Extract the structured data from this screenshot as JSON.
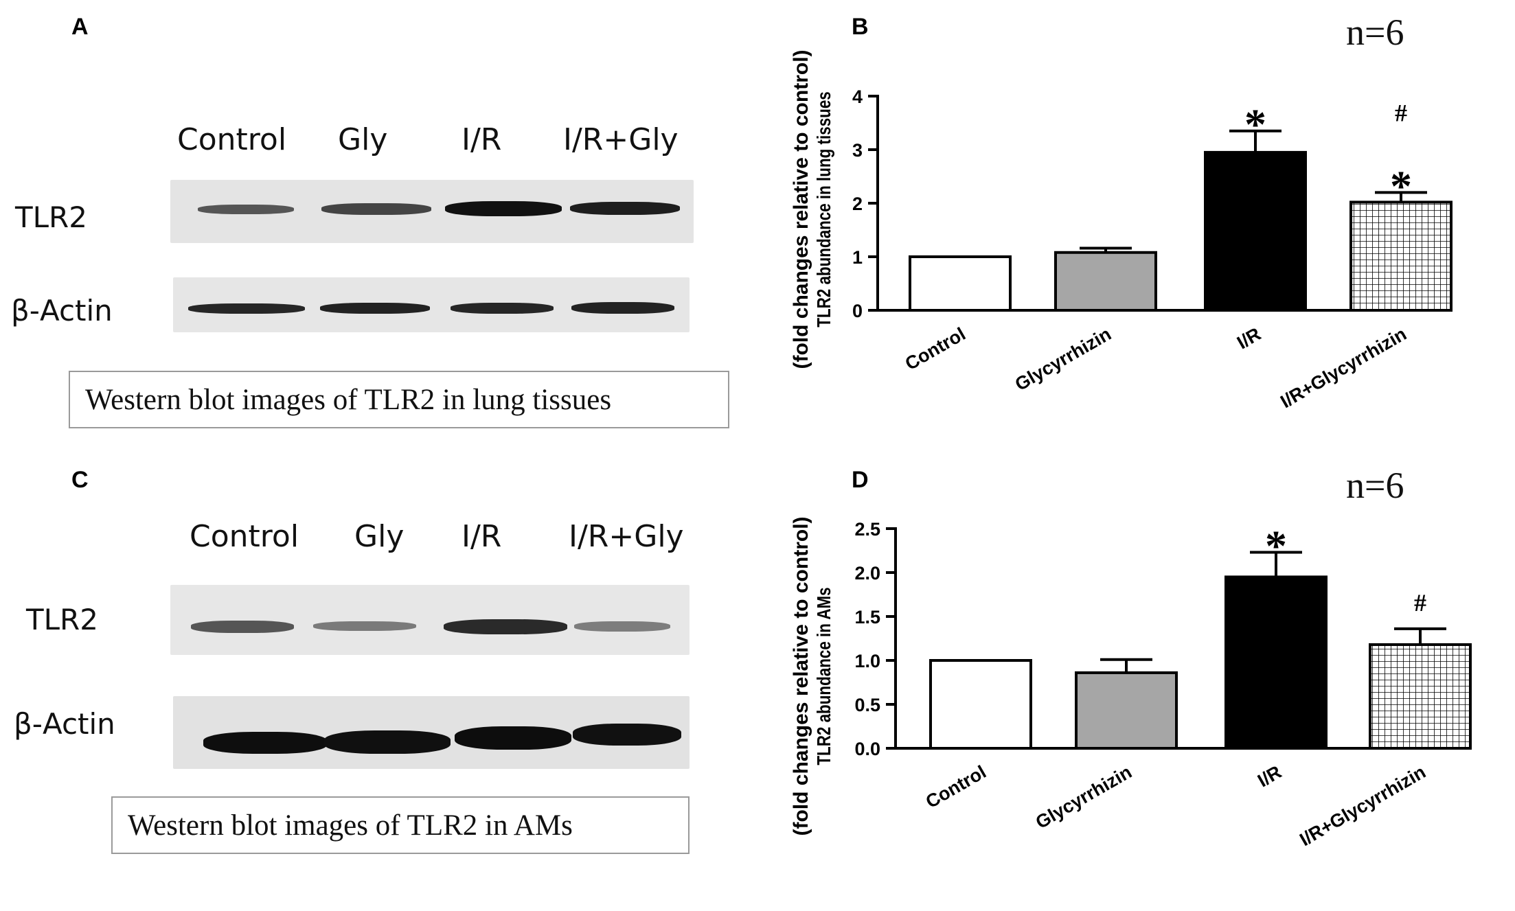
{
  "panels": {
    "a": {
      "letter": "A",
      "lanes": [
        "Control",
        "Gly",
        "I/R",
        "I/R+Gly"
      ],
      "rows": [
        "TLR2",
        "β-Actin"
      ],
      "caption": "Western blot images of TLR2 in lung tissues"
    },
    "b": {
      "letter": "B",
      "n_label": "n=6"
    },
    "c": {
      "letter": "C",
      "lanes": [
        "Control",
        "Gly",
        "I/R",
        "I/R+Gly"
      ],
      "rows": [
        "TLR2",
        "β-Actin"
      ],
      "caption": "Western blot images of TLR2 in AMs"
    },
    "d": {
      "letter": "D",
      "n_label": "n=6"
    }
  },
  "chart_data": [
    {
      "type": "bar",
      "panel": "B",
      "categories": [
        "Control",
        "Glycyrrhizin",
        "I/R",
        "I/R+Glycyrrhizin"
      ],
      "values": [
        1.0,
        1.08,
        2.95,
        2.02
      ],
      "errors": [
        0.0,
        0.08,
        0.4,
        0.18
      ],
      "ylabel_line1": "(fold changes relative to control)",
      "ylabel_line2": "TLR2 abundance in lung tissues",
      "ylim": [
        0,
        4
      ],
      "yticks": [
        "0",
        "1",
        "2",
        "3",
        "4"
      ],
      "fills": [
        "#ffffff",
        "#a6a6a6",
        "#000000",
        "pattern-grid"
      ],
      "annotations": [
        {
          "category": "I/R",
          "marks": [
            "*"
          ]
        },
        {
          "category": "I/R+Glycyrrhizin",
          "marks": [
            "#",
            "*"
          ]
        }
      ],
      "grid": false
    },
    {
      "type": "bar",
      "panel": "D",
      "categories": [
        "Control",
        "Glycyrrhizin",
        "I/R",
        "I/R+Glycyrrhizin"
      ],
      "values": [
        1.0,
        0.86,
        1.95,
        1.18
      ],
      "errors": [
        0.0,
        0.15,
        0.28,
        0.18
      ],
      "ylabel_line1": "(fold changes relative to control)",
      "ylabel_line2": "TLR2 abundance in AMs",
      "ylim": [
        0,
        2.5
      ],
      "yticks": [
        "0.0",
        "0.5",
        "1.0",
        "1.5",
        "2.0",
        "2.5"
      ],
      "fills": [
        "#ffffff",
        "#a6a6a6",
        "#000000",
        "pattern-grid"
      ],
      "annotations": [
        {
          "category": "I/R",
          "marks": [
            "*"
          ]
        },
        {
          "category": "I/R+Glycyrrhizin",
          "marks": [
            "#"
          ]
        }
      ],
      "grid": false
    }
  ]
}
